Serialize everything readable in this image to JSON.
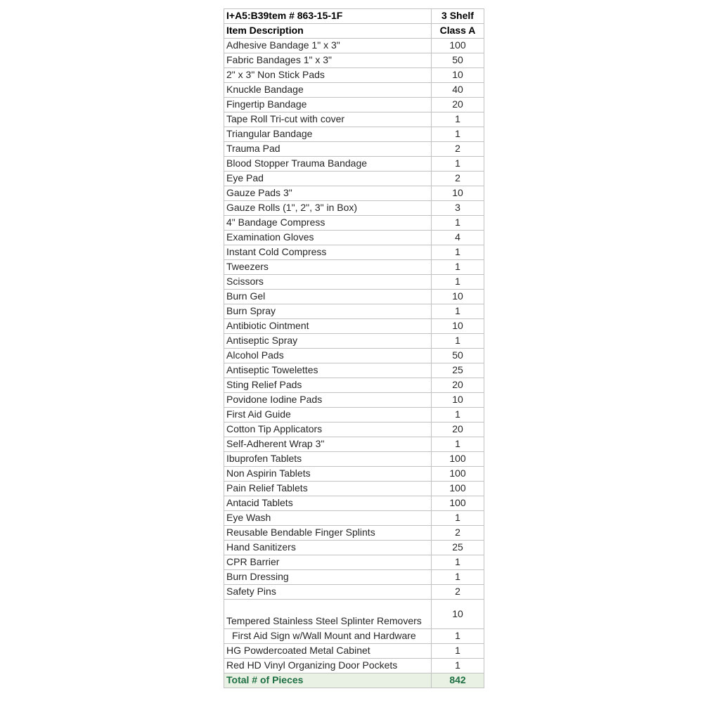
{
  "table": {
    "header": {
      "item_code": "I+A5:B39tem # 863-15-1F",
      "shelf": "3 Shelf"
    },
    "subheader": {
      "description": "Item Description",
      "class": "Class A"
    },
    "rows": [
      {
        "item": "Adhesive Bandage 1\" x 3\"",
        "qty": "100"
      },
      {
        "item": "Fabric Bandages 1\" x 3\"",
        "qty": "50"
      },
      {
        "item": "2\" x 3\" Non Stick Pads",
        "qty": "10"
      },
      {
        "item": "Knuckle Bandage",
        "qty": "40"
      },
      {
        "item": "Fingertip Bandage",
        "qty": "20"
      },
      {
        "item": "Tape Roll Tri-cut with cover",
        "qty": "1"
      },
      {
        "item": "Triangular Bandage",
        "qty": "1"
      },
      {
        "item": "Trauma Pad",
        "qty": "2"
      },
      {
        "item": "Blood Stopper Trauma Bandage",
        "qty": "1"
      },
      {
        "item": "Eye Pad",
        "qty": "2"
      },
      {
        "item": "Gauze Pads 3\"",
        "qty": "10"
      },
      {
        "item": "Gauze Rolls (1\", 2\", 3\" in Box)",
        "qty": "3"
      },
      {
        "item": "4\" Bandage Compress",
        "qty": "1"
      },
      {
        "item": "Examination Gloves",
        "qty": "4"
      },
      {
        "item": "Instant Cold Compress",
        "qty": "1"
      },
      {
        "item": "Tweezers",
        "qty": "1"
      },
      {
        "item": "Scissors",
        "qty": "1"
      },
      {
        "item": "Burn Gel",
        "qty": "10"
      },
      {
        "item": "Burn Spray",
        "qty": "1"
      },
      {
        "item": "Antibiotic Ointment",
        "qty": "10"
      },
      {
        "item": "Antiseptic Spray",
        "qty": "1"
      },
      {
        "item": "Alcohol Pads",
        "qty": "50"
      },
      {
        "item": "Antiseptic Towelettes",
        "qty": "25"
      },
      {
        "item": "Sting Relief Pads",
        "qty": "20"
      },
      {
        "item": "Povidone Iodine Pads",
        "qty": "10"
      },
      {
        "item": "First Aid Guide",
        "qty": "1"
      },
      {
        "item": "Cotton Tip Applicators",
        "qty": "20"
      },
      {
        "item": "Self-Adherent Wrap 3\"",
        "qty": "1"
      },
      {
        "item": "Ibuprofen Tablets",
        "qty": "100"
      },
      {
        "item": "Non Aspirin Tablets",
        "qty": "100"
      },
      {
        "item": "Pain Relief Tablets",
        "qty": "100"
      },
      {
        "item": "Antacid Tablets",
        "qty": "100"
      },
      {
        "item": "Eye Wash",
        "qty": "1"
      },
      {
        "item": "Reusable Bendable Finger Splints",
        "qty": "2"
      },
      {
        "item": "Hand Sanitizers",
        "qty": "25"
      },
      {
        "item": "CPR Barrier",
        "qty": "1"
      },
      {
        "item": "Burn Dressing",
        "qty": "1"
      },
      {
        "item": "Safety Pins",
        "qty": "2"
      },
      {
        "item": "Tempered Stainless Steel Splinter Removers",
        "qty": "10",
        "wrap": true
      },
      {
        "item": "First Aid Sign w/Wall Mount and Hardware",
        "qty": "1",
        "indent": true
      },
      {
        "item": "HG Powdercoated Metal Cabinet",
        "qty": "1"
      },
      {
        "item": "Red HD Vinyl Organizing Door Pockets",
        "qty": "1"
      }
    ],
    "total": {
      "label": "Total # of Pieces",
      "value": "842"
    }
  },
  "colors": {
    "grid": "#c2c2c2",
    "total_background": "#e9f1e5",
    "total_text": "#1e6f42",
    "total_top_border": "#79a36c"
  }
}
